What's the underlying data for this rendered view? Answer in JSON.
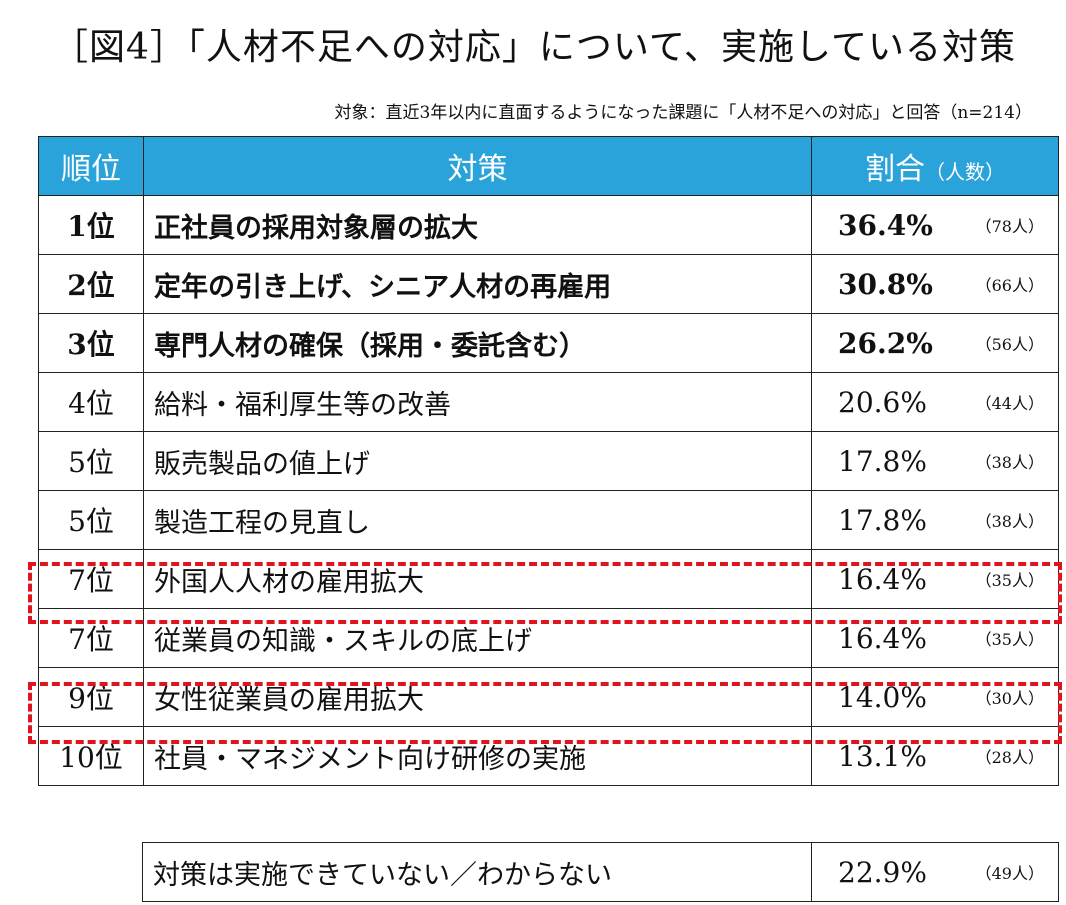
{
  "title": "［図4］「人材不足への対応」について、実施している対策",
  "subtitle": "対象：直近3年以内に直面するようになった課題に「人材不足への対応」と回答（n=214）",
  "table": {
    "headers": {
      "rank": "順位",
      "measure": "対策",
      "ratio": "割合",
      "ratio_sub": "（人数）"
    },
    "rows": [
      {
        "rank": "1位",
        "measure": "正社員の採用対象層の拡大",
        "percent": "36.4%",
        "count": "（78人）"
      },
      {
        "rank": "2位",
        "measure": "定年の引き上げ、シニア人材の再雇用",
        "percent": "30.8%",
        "count": "（66人）"
      },
      {
        "rank": "3位",
        "measure": "専門人材の確保（採用・委託含む）",
        "percent": "26.2%",
        "count": "（56人）"
      },
      {
        "rank": "4位",
        "measure": "給料・福利厚生等の改善",
        "percent": "20.6%",
        "count": "（44人）"
      },
      {
        "rank": "5位",
        "measure": "販売製品の値上げ",
        "percent": "17.8%",
        "count": "（38人）"
      },
      {
        "rank": "5位",
        "measure": "製造工程の見直し",
        "percent": "17.8%",
        "count": "（38人）"
      },
      {
        "rank": "7位",
        "measure": "外国人人材の雇用拡大",
        "percent": "16.4%",
        "count": "（35人）"
      },
      {
        "rank": "7位",
        "measure": "従業員の知識・スキルの底上げ",
        "percent": "16.4%",
        "count": "（35人）"
      },
      {
        "rank": "9位",
        "measure": "女性従業員の雇用拡大",
        "percent": "14.0%",
        "count": "（30人）"
      },
      {
        "rank": "10位",
        "measure": "社員・マネジメント向け研修の実施",
        "percent": "13.1%",
        "count": "（28人）"
      }
    ]
  },
  "footer_row": {
    "measure": "対策は実施できていない／わからない",
    "percent": "22.9%",
    "count": "（49人）"
  },
  "colors": {
    "header_bg": "#2aa3db",
    "highlight": "#e0141e"
  }
}
